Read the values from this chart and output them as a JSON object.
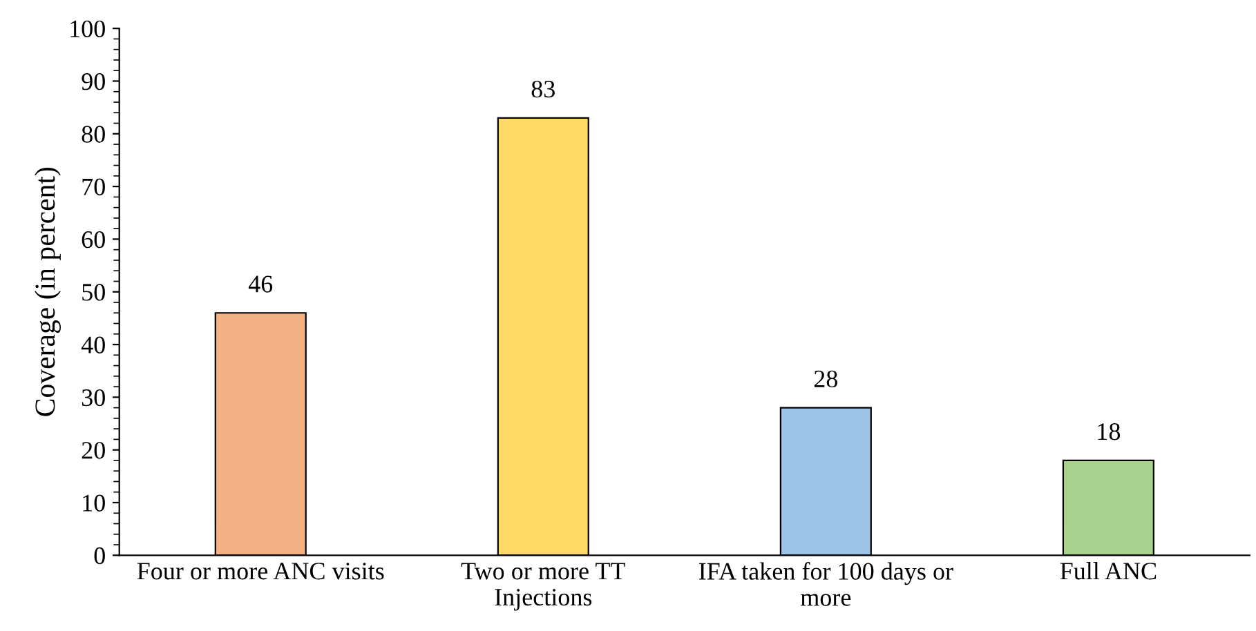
{
  "chart_data": {
    "type": "bar",
    "ylabel": "Coverage (in percent)",
    "categories": [
      "Four or more ANC visits",
      "Two or more TT\nInjections",
      "IFA taken for 100 days or\nmore",
      "Full ANC"
    ],
    "values": [
      46,
      83,
      28,
      18
    ],
    "colors": [
      "#f4b183",
      "#ffd966",
      "#9dc3e6",
      "#a9d18e"
    ],
    "ylim": [
      0,
      100
    ],
    "yticks": [
      0,
      10,
      20,
      30,
      40,
      50,
      60,
      70,
      80,
      90,
      100
    ],
    "grid": false,
    "data_labels": true
  }
}
